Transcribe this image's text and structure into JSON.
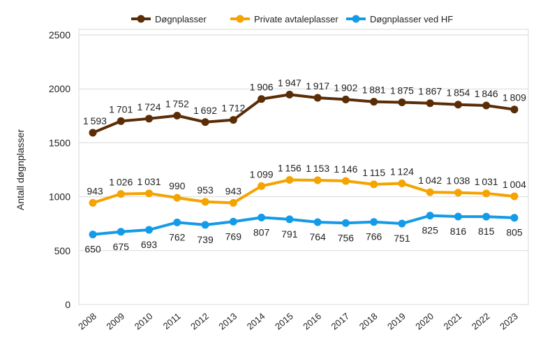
{
  "chart_data": {
    "type": "line",
    "ylabel": "Antall døgnplasser",
    "xlabel": "",
    "ylim": [
      0,
      2500
    ],
    "yticks": [
      0,
      500,
      1000,
      1500,
      2000,
      2500
    ],
    "grid": true,
    "legend_position": "top",
    "categories": [
      "2008",
      "2009",
      "2010",
      "2011",
      "2012",
      "2013",
      "2014",
      "2015",
      "2016",
      "2017",
      "2018",
      "2019",
      "2020",
      "2021",
      "2022",
      "2023"
    ],
    "series": [
      {
        "name": "Døgnplasser",
        "color": "#5a2d06",
        "label_position": "above",
        "values": [
          1593,
          1701,
          1724,
          1752,
          1692,
          1712,
          1906,
          1947,
          1917,
          1902,
          1881,
          1875,
          1867,
          1854,
          1846,
          1809
        ]
      },
      {
        "name": "Private avtaleplasser",
        "color": "#f5a300",
        "label_position": "above",
        "values": [
          943,
          1026,
          1031,
          990,
          953,
          943,
          1099,
          1156,
          1153,
          1146,
          1115,
          1124,
          1042,
          1038,
          1031,
          1004
        ]
      },
      {
        "name": "Døgnplasser ved HF",
        "color": "#149be8",
        "label_position": "below",
        "values": [
          650,
          675,
          693,
          762,
          739,
          769,
          807,
          791,
          764,
          756,
          766,
          751,
          825,
          816,
          815,
          805
        ]
      }
    ]
  }
}
